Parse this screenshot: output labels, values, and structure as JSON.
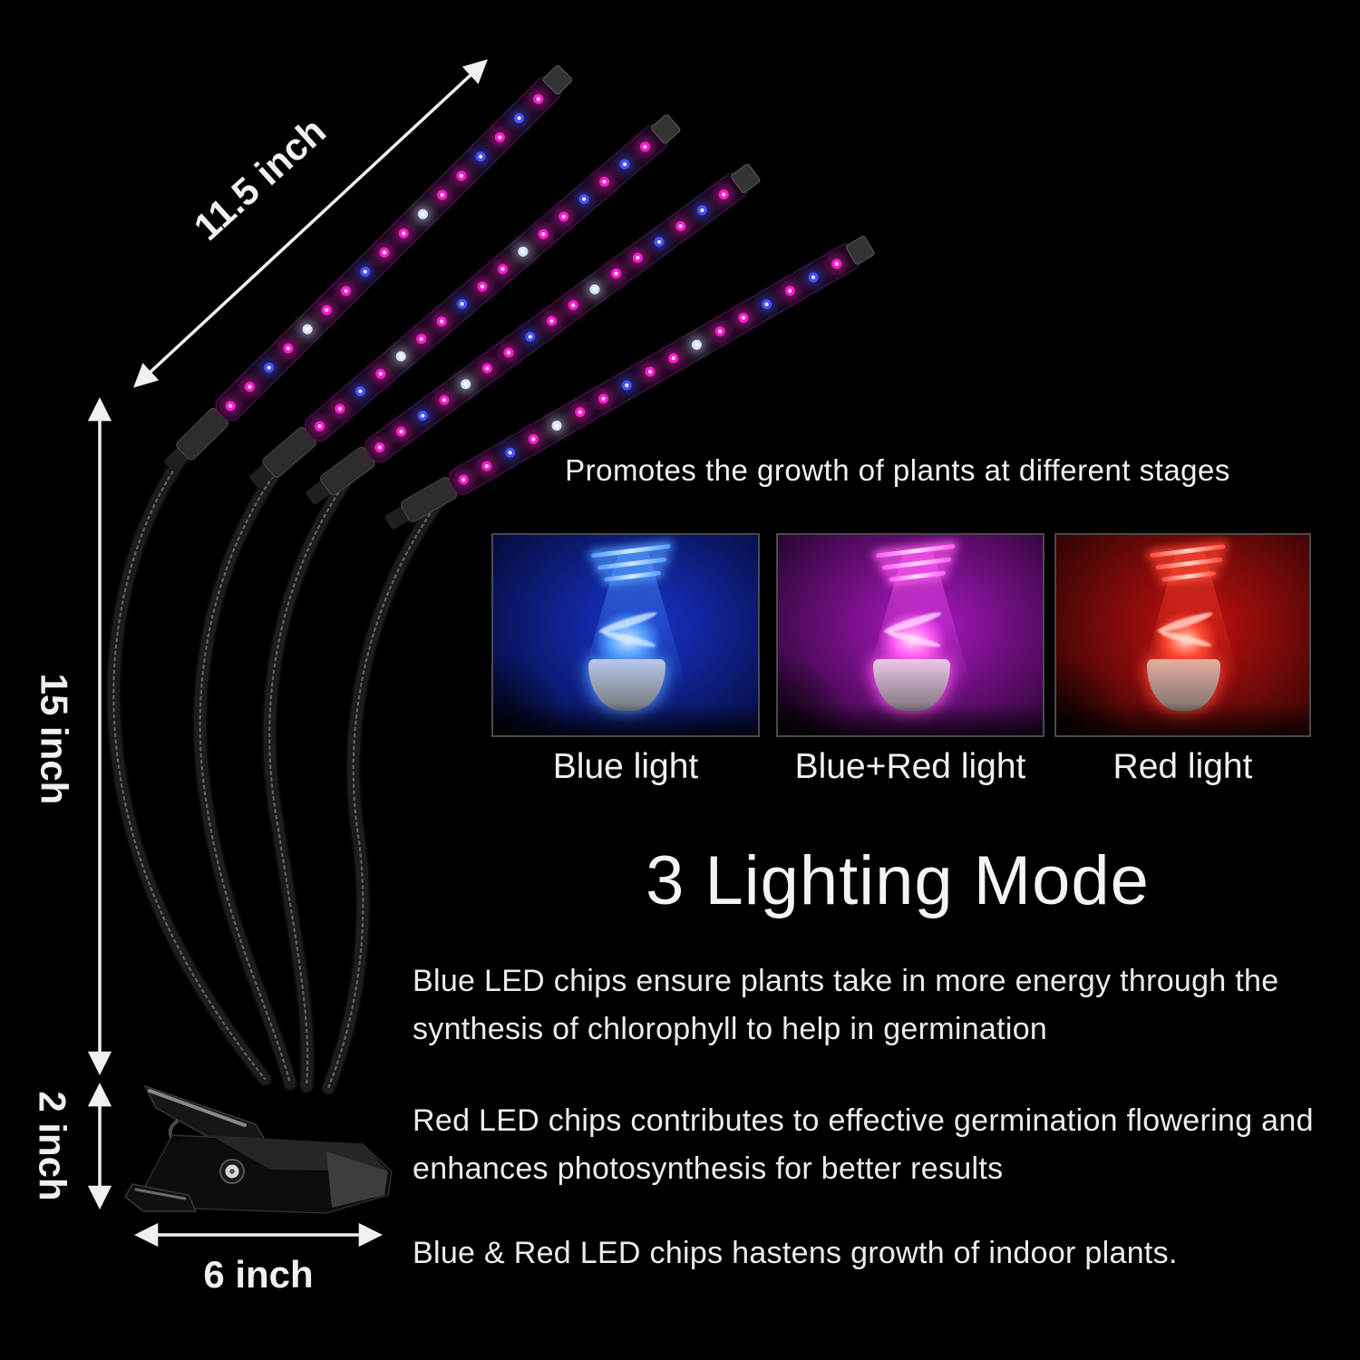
{
  "page": {
    "background": "#000000",
    "text_color": "#eeeeee"
  },
  "product": {
    "name": "4-head clip-on gooseneck LED grow light",
    "led_colors": {
      "magenta": "#ff1ecb",
      "blue": "#4353ff",
      "white": "#d9e2ff"
    },
    "led_pattern": [
      "magenta",
      "magenta",
      "blue",
      "magenta",
      "white",
      "magenta",
      "magenta",
      "blue",
      "magenta",
      "magenta",
      "white",
      "magenta",
      "magenta",
      "blue",
      "magenta",
      "blue",
      "magenta"
    ]
  },
  "dimensions": {
    "bar_length": "11.5 inch",
    "gooseneck_height": "15 inch",
    "clip_height": "2 inch",
    "clip_width": "6 inch"
  },
  "promo": {
    "title": "Promotes the growth of plants at different stages"
  },
  "modes": [
    {
      "label": "Blue light",
      "colors": {
        "deep": "#050b38",
        "mid": "#1733cf",
        "bright": "#4f9bff",
        "beam": "#d6ecff",
        "pot": "#b9c9ea"
      }
    },
    {
      "label": "Blue+Red light",
      "colors": {
        "deep": "#26062e",
        "mid": "#ad17c4",
        "bright": "#ff5af2",
        "beam": "#ffdcfb",
        "pot": "#eec6ea"
      }
    },
    {
      "label": "Red light",
      "colors": {
        "deep": "#2d0404",
        "mid": "#c51010",
        "bright": "#ff4733",
        "beam": "#ffd9c9",
        "pot": "#e7ae9e"
      }
    }
  ],
  "lighting": {
    "heading": "3 Lighting Mode",
    "paragraphs": [
      "Blue LED chips ensure plants take in more energy through the\nsynthesis of chlorophyll to help in germination",
      "Red LED chips contributes to effective germination flowering and\nenhances photosynthesis for better results",
      "Blue & Red LED chips hastens growth of indoor plants."
    ]
  }
}
